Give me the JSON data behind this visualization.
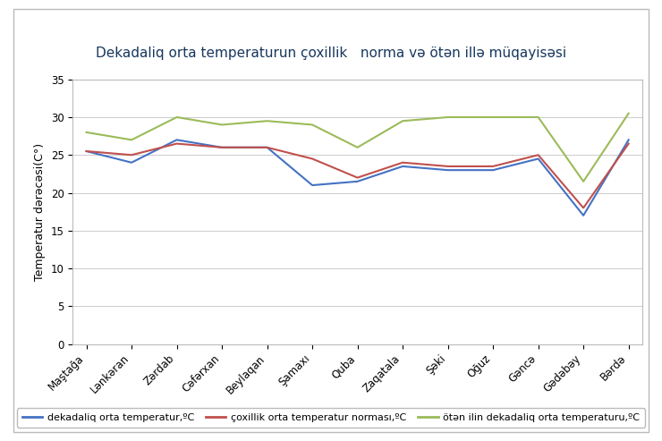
{
  "title": "Dekadaliq orta temperaturun çoxillik   norma və ötən illə müqayisəsi",
  "ylabel": "Temperatur dərəcəsi(C°)",
  "categories": [
    "Maştağa",
    "Lənkəran",
    "Zərdab",
    "Cəfərxan",
    "Beylaqan",
    "Şamaxı",
    "Quba",
    "Zaqatala",
    "Şəki",
    "Oğuz",
    "Gəncə",
    "Gədəbəy",
    "Bərdə"
  ],
  "blue_values": [
    25.5,
    24.0,
    27.0,
    26.0,
    26.0,
    21.0,
    21.5,
    23.5,
    23.0,
    23.0,
    24.5,
    17.0,
    27.0
  ],
  "red_values": [
    25.5,
    25.0,
    26.5,
    26.0,
    26.0,
    24.5,
    22.0,
    24.0,
    23.5,
    23.5,
    25.0,
    18.0,
    26.5
  ],
  "green_values": [
    28.0,
    27.0,
    30.0,
    29.0,
    29.5,
    29.0,
    26.0,
    29.5,
    30.0,
    30.0,
    30.0,
    21.5,
    30.5
  ],
  "blue_label": "dekadaliq orta temperatur,ºC",
  "red_label": "çoxillik orta temperatur norması,ºC",
  "green_label": "ötən ilin dekadaliq orta temperaturu,ºC",
  "blue_color": "#4472C4",
  "red_color": "#C0504D",
  "green_color": "#9BBB59",
  "ylim": [
    0,
    35
  ],
  "yticks": [
    0,
    5,
    10,
    15,
    20,
    25,
    30,
    35
  ],
  "title_color": "#17375E",
  "bg_color": "#FFFFFF",
  "plot_bg": "#FFFFFF",
  "outer_border_color": "#AAAAAA",
  "title_fontsize": 11,
  "axis_label_fontsize": 9,
  "tick_fontsize": 8.5,
  "legend_fontsize": 8,
  "line_width": 1.5
}
